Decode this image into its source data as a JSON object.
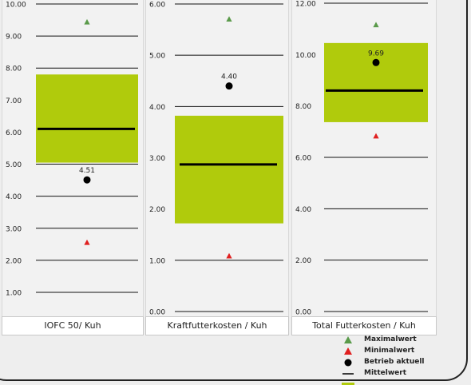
{
  "chart_data": [
    {
      "type": "box",
      "xlabel": "IOFC 50/ Kuh",
      "ylim": [
        0.5,
        10
      ],
      "yticks": [
        "10.00",
        "9.00",
        "8.00",
        "7.00",
        "6.00",
        "5.00",
        "4.00",
        "3.00",
        "2.00",
        "1.00"
      ],
      "ytick_values": [
        10,
        9,
        8,
        7,
        6,
        5,
        4,
        3,
        2,
        1
      ],
      "box": {
        "low": 5.05,
        "high": 7.8
      },
      "mean": 6.1,
      "max": 9.43,
      "min": 2.55,
      "current": 4.51,
      "current_label": "4.51"
    },
    {
      "type": "box",
      "xlabel": "Kraftfutterkosten / Kuh",
      "ylim": [
        0,
        6
      ],
      "yticks": [
        "6.00",
        "5.00",
        "4.00",
        "3.00",
        "2.00",
        "1.00",
        "0.00"
      ],
      "ytick_values": [
        6,
        5,
        4,
        3,
        2,
        1,
        0
      ],
      "box": {
        "low": 1.72,
        "high": 3.82
      },
      "mean": 2.87,
      "max": 5.7,
      "min": 1.08,
      "current": 4.4,
      "current_label": "4.40"
    },
    {
      "type": "box",
      "xlabel": "Total Futterkosten / Kuh",
      "ylim": [
        0,
        12
      ],
      "yticks": [
        "12.00",
        "10.00",
        "8.00",
        "6.00",
        "4.00",
        "2.00",
        "0.00"
      ],
      "ytick_values": [
        12,
        10,
        8,
        6,
        4,
        2,
        0
      ],
      "box": {
        "low": 7.37,
        "high": 10.45
      },
      "mean": 8.6,
      "max": 11.15,
      "min": 6.82,
      "current": 9.69,
      "current_label": "9.69"
    }
  ],
  "legend": [
    {
      "label": "Maximalwert",
      "symbol": "triangle",
      "color": "#5a9a4a"
    },
    {
      "label": "Minimalwert",
      "symbol": "triangle",
      "color": "#e02020"
    },
    {
      "label": "Betrieb aktuell",
      "symbol": "dot",
      "color": "#000000"
    },
    {
      "label": "Mittelwert",
      "symbol": "line",
      "color": "#000000"
    },
    {
      "label": "",
      "symbol": "box",
      "color": "#b0cb0c"
    }
  ],
  "colors": {
    "box": "#b0cb0c",
    "max": "#5a9a4a",
    "min": "#e02020",
    "current": "#000000",
    "mean": "#000000"
  }
}
